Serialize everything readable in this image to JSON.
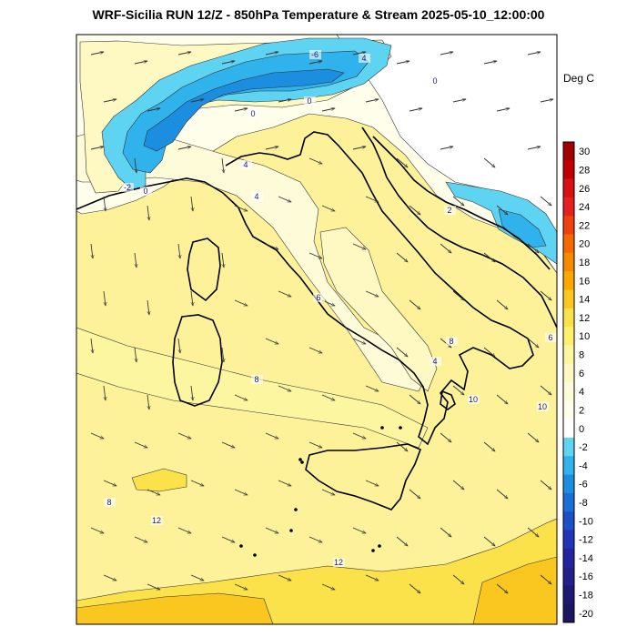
{
  "header": {
    "title": "WRF-Sicilia RUN 12/Z - 850hPa Temperature & Stream 2025-05-10_12:00:00"
  },
  "colorbar": {
    "unit": "Deg C",
    "levels": [
      30,
      28,
      26,
      24,
      22,
      20,
      18,
      16,
      14,
      12,
      10,
      8,
      6,
      4,
      2,
      0,
      -2,
      -4,
      -6,
      -8,
      -10,
      -12,
      -14,
      -16,
      -18,
      -20
    ],
    "colors": {
      "30": "#a00000",
      "28": "#c00000",
      "26": "#d81010",
      "24": "#e52020",
      "22": "#ee4010",
      "20": "#f26a00",
      "18": "#f58a00",
      "16": "#f8a800",
      "14": "#fac620",
      "12": "#fbe14a",
      "10": "#fcf06c",
      "8": "#fdf6a0",
      "6": "#fef9c2",
      "4": "#fefbd8",
      "2": "#fffeea",
      "0": "#ffffff",
      "-2": "#5fd3f2",
      "-4": "#30b2ec",
      "-6": "#1c8ee0",
      "-8": "#1a6fd6",
      "-10": "#1d4fc8",
      "-12": "#2235b8",
      "-14": "#2424a0",
      "-16": "#22208a",
      "-18": "#1e1a74",
      "-20": "#1a1660"
    }
  },
  "map": {
    "contour_labels": [
      "-6",
      "4",
      "0",
      "0",
      "0",
      "-2",
      "0",
      "4",
      "4",
      "2",
      "6",
      "6",
      "4",
      "8",
      "8",
      "10",
      "10",
      "8",
      "12",
      "12"
    ]
  }
}
